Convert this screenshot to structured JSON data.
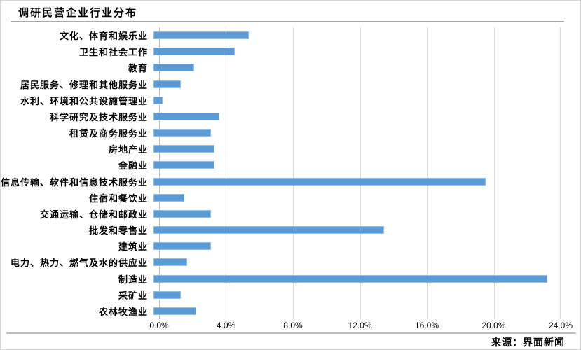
{
  "title": "调研民营企业行业分布",
  "source": {
    "text": "来源：界面新闻"
  },
  "colors": {
    "bar": "#5B9BD5",
    "gridline": "#D9D9D9",
    "axis_line": "#BFBFBF",
    "title_rule": "#A9A9A9",
    "bottom_rule": "#C0C0C0",
    "text": "#000000"
  },
  "chart_data": {
    "type": "bar",
    "orientation": "horizontal",
    "title": "调研民营企业行业分布",
    "xlabel": "",
    "ylabel": "",
    "xlim": [
      0,
      24
    ],
    "grid": true,
    "legend": false,
    "x_tick_labels": [
      "0.0%",
      "4.0%",
      "8.0%",
      "12.0%",
      "16.0%",
      "20.0%",
      "24.0%"
    ],
    "x_tick_values": [
      0,
      4,
      8,
      12,
      16,
      20,
      24
    ],
    "categories": [
      "文化、体育和娱乐业",
      "卫生和社会工作",
      "教育",
      "居民服务、修理和其他服务业",
      "水利、环境和公共设施管理业",
      "科学研究及技术服务业",
      "租赁及商务服务业",
      "房地产业",
      "金融业",
      "信息传输、软件和信息技术服务业",
      "住宿和餐饮业",
      "交通运输、仓储和邮政业",
      "批发和零售业",
      "建筑业",
      "电力、热力、燃气及水的供应业",
      "制造业",
      "采矿业",
      "农林牧渔业"
    ],
    "values": [
      5.6,
      4.8,
      2.4,
      1.6,
      0.55,
      3.9,
      3.4,
      3.6,
      3.6,
      19.6,
      1.8,
      3.4,
      13.6,
      3.4,
      2.0,
      23.2,
      1.6,
      2.5
    ],
    "unit": "%"
  }
}
